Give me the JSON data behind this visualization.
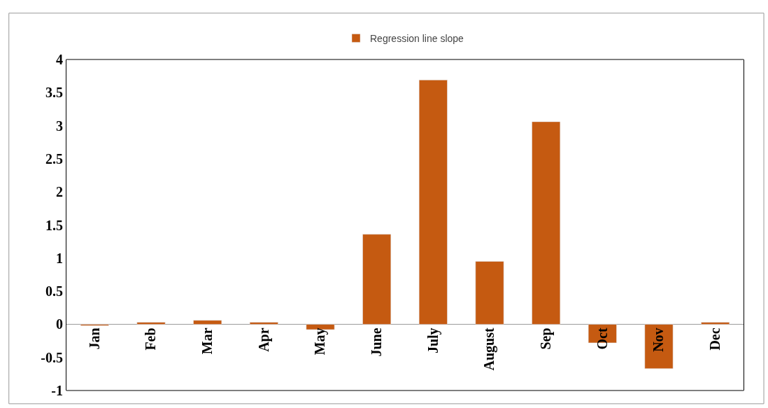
{
  "chart_data": {
    "type": "bar",
    "categories": [
      "Jan",
      "Feb",
      "Mar",
      "Apr",
      "May",
      "June",
      "July",
      "August",
      "Sep",
      "Oct",
      "Nov",
      "Dec"
    ],
    "series": [
      {
        "name": "Regression line slope",
        "color": "#c55a11",
        "values": [
          -0.02,
          0.03,
          0.06,
          0.03,
          -0.08,
          1.36,
          3.69,
          0.95,
          3.06,
          -0.28,
          -0.67,
          0.03
        ]
      }
    ],
    "ylim": [
      -1,
      4
    ],
    "yticks": [
      -1,
      -0.5,
      0,
      0.5,
      1,
      1.5,
      2,
      2.5,
      3,
      3.5,
      4
    ],
    "legend": "top"
  }
}
